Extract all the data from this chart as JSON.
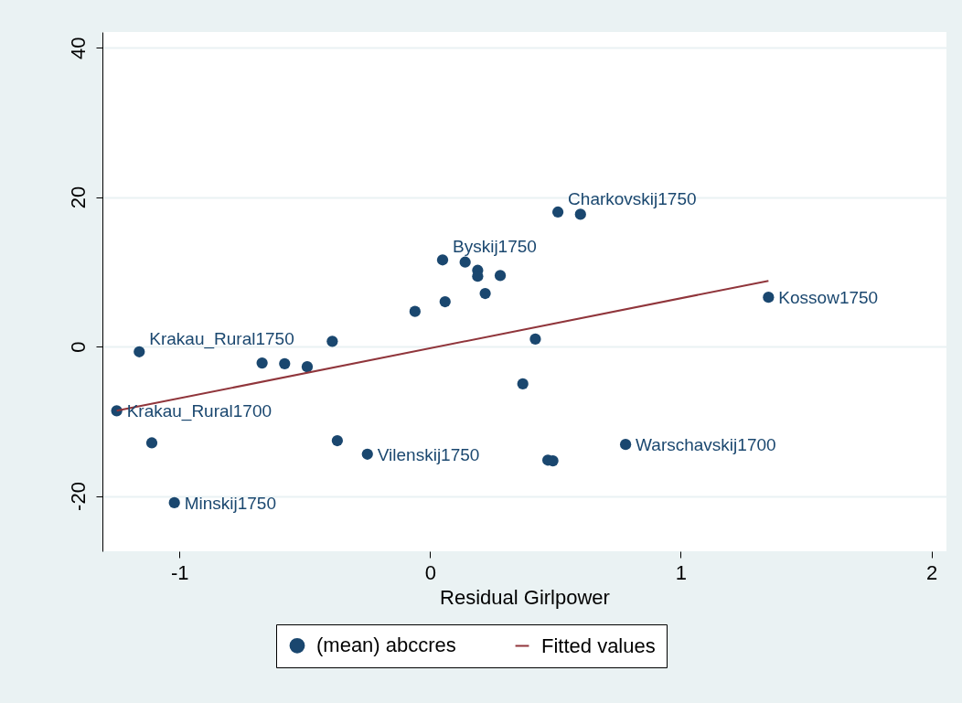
{
  "chart_data": {
    "type": "scatter",
    "xlabel": "Residual Girlpower",
    "xlim": [
      -1.307,
      2.06
    ],
    "xticks": [
      -1,
      0,
      1,
      2
    ],
    "ylim": [
      -27.4,
      42.1
    ],
    "yticks": [
      -20,
      0,
      20,
      40
    ],
    "grid": "y",
    "legend": "bottom",
    "series": [
      {
        "name": "(mean) abccres",
        "marker": "circle",
        "color": "#1a476f",
        "x": [
          -1.16,
          -1.25,
          -1.11,
          -1.02,
          -0.67,
          -0.58,
          -0.49,
          -0.39,
          -0.37,
          -0.25,
          -0.06,
          0.06,
          0.05,
          0.14,
          0.19,
          0.19,
          0.28,
          0.22,
          0.42,
          0.37,
          0.47,
          0.49,
          0.51,
          0.6,
          0.78,
          1.35
        ],
        "values": [
          -0.7,
          -8.6,
          -12.9,
          -20.9,
          -2.2,
          -2.3,
          -2.7,
          0.7,
          -12.6,
          -14.4,
          4.7,
          6.0,
          11.6,
          11.3,
          10.2,
          9.4,
          9.5,
          7.1,
          1.0,
          -5.0,
          -15.2,
          -15.3,
          18.0,
          17.7,
          -13.1,
          6.6
        ]
      },
      {
        "name": "Fitted values",
        "type": "line",
        "color": "#90353b",
        "x": [
          -1.25,
          1.35
        ],
        "values": [
          -8.6,
          8.8
        ]
      }
    ],
    "annotations": [
      {
        "text": "Krakau_Rural1750",
        "x": -1.16,
        "y": -0.7
      },
      {
        "text": "Krakau_Rural1700",
        "x": -1.25,
        "y": -8.6
      },
      {
        "text": "Minskij1750",
        "x": -1.02,
        "y": -20.9
      },
      {
        "text": "Vilenskij1750",
        "x": -0.25,
        "y": -14.4
      },
      {
        "text": "Byskij1750",
        "x": 0.05,
        "y": 11.6
      },
      {
        "text": "Charkovskij1750",
        "x": 0.51,
        "y": 18.0
      },
      {
        "text": "Warschavskij1700",
        "x": 0.78,
        "y": -13.1
      },
      {
        "text": "Kossow1750",
        "x": 1.35,
        "y": 6.6
      }
    ]
  }
}
